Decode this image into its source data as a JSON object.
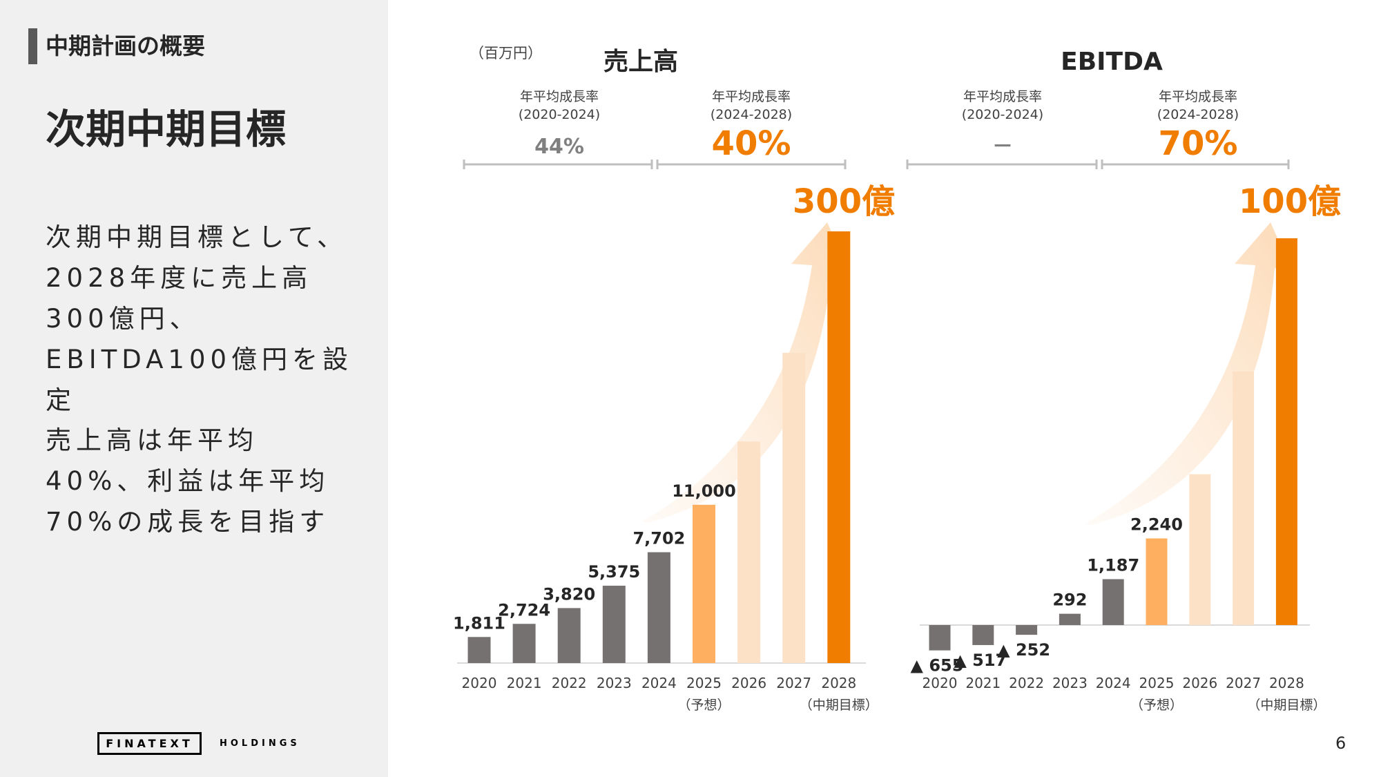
{
  "section_title": "中期計画の概要",
  "page_heading": "次期中期目標",
  "body": {
    "paragraph1": "次期中期目標として、2028年度に売上高300億円、EBITDA100億円を設定",
    "paragraph2": "売上高は年平均40%、利益は年平均70%の成長を目指す"
  },
  "logo": {
    "name": "FINATEXT",
    "sub": "HOLDINGS"
  },
  "page_number": "6",
  "colors": {
    "actual": "#767171",
    "forecast": "#FFAF60",
    "projection": "#FDE1C6",
    "target": "#F07C00",
    "accent_text": "#F07C00",
    "gray_text": "#808080"
  },
  "chart_data": [
    {
      "type": "bar",
      "title": "売上高",
      "unit_label": "（百万円）",
      "categories": [
        "2020",
        "2021",
        "2022",
        "2023",
        "2024",
        "2025",
        "2026",
        "2027",
        "2028"
      ],
      "category_notes": [
        "",
        "",
        "",
        "",
        "",
        "（予想）",
        "",
        "",
        "（中期目標）"
      ],
      "values": [
        1811,
        2724,
        3820,
        5375,
        7702,
        11000,
        15400,
        21560,
        30000
      ],
      "value_labels": [
        "1,811",
        "2,724",
        "3,820",
        "5,375",
        "7,702",
        "11,000",
        "",
        "",
        ""
      ],
      "bar_status": [
        "actual",
        "actual",
        "actual",
        "actual",
        "actual",
        "forecast",
        "projection",
        "projection",
        "target"
      ],
      "target_label": "300億",
      "ylim": [
        0,
        30000
      ],
      "growth": [
        {
          "label": "年平均成長率",
          "period": "(2020-2024)",
          "value": "44%",
          "emphasis": false
        },
        {
          "label": "年平均成長率",
          "period": "(2024-2028)",
          "value": "40%",
          "emphasis": true
        }
      ]
    },
    {
      "type": "bar",
      "title": "EBITDA",
      "categories": [
        "2020",
        "2021",
        "2022",
        "2023",
        "2024",
        "2025",
        "2026",
        "2027",
        "2028"
      ],
      "category_notes": [
        "",
        "",
        "",
        "",
        "",
        "（予想）",
        "",
        "",
        "（中期目標）"
      ],
      "values": [
        -655,
        -517,
        -252,
        292,
        1187,
        2240,
        3900,
        6550,
        10000
      ],
      "value_labels": [
        "▲ 655",
        "▲ 517",
        "▲ 252",
        "292",
        "1,187",
        "2,240",
        "",
        "",
        ""
      ],
      "bar_status": [
        "actual",
        "actual",
        "actual",
        "actual",
        "actual",
        "forecast",
        "projection",
        "projection",
        "target"
      ],
      "target_label": "100億",
      "ylim": [
        -655,
        10000
      ],
      "growth": [
        {
          "label": "年平均成長率",
          "period": "(2020-2024)",
          "value": "－",
          "emphasis": false
        },
        {
          "label": "年平均成長率",
          "period": "(2024-2028)",
          "value": "70%",
          "emphasis": true
        }
      ]
    }
  ]
}
